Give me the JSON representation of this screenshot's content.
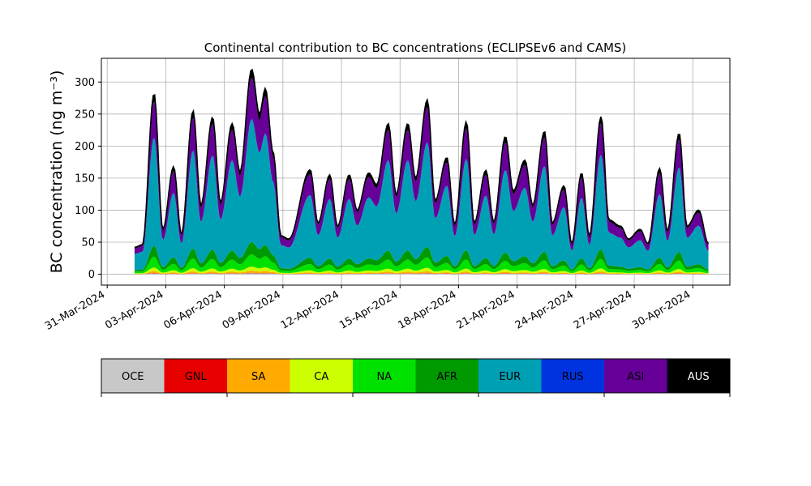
{
  "chart_data": {
    "type": "area",
    "stacked": true,
    "title": "Continental contribution to BC concentrations (ECLIPSEv6 and CAMS)",
    "ylabel": "BC concentration (ng m⁻³)",
    "xlabel": "",
    "ylim": [
      -17,
      337
    ],
    "yticks": [
      0,
      50,
      100,
      150,
      200,
      250,
      300
    ],
    "xlim_days": [
      -0.3,
      31.9
    ],
    "xticks": [
      {
        "day": 0,
        "label": "31-Mar-2024"
      },
      {
        "day": 3,
        "label": "03-Apr-2024"
      },
      {
        "day": 6,
        "label": "06-Apr-2024"
      },
      {
        "day": 9,
        "label": "09-Apr-2024"
      },
      {
        "day": 12,
        "label": "12-Apr-2024"
      },
      {
        "day": 15,
        "label": "15-Apr-2024"
      },
      {
        "day": 18,
        "label": "18-Apr-2024"
      },
      {
        "day": 21,
        "label": "21-Apr-2024"
      },
      {
        "day": 24,
        "label": "24-Apr-2024"
      },
      {
        "day": 27,
        "label": "27-Apr-2024"
      },
      {
        "day": 30,
        "label": "30-Apr-2024"
      }
    ],
    "grid": true,
    "legend_position": "below",
    "total_peaks": [
      [
        1.4,
        42
      ],
      [
        1.8,
        46
      ],
      [
        2.4,
        282
      ],
      [
        2.85,
        70
      ],
      [
        3.4,
        168
      ],
      [
        3.8,
        63
      ],
      [
        4.4,
        255
      ],
      [
        4.8,
        108
      ],
      [
        5.4,
        245
      ],
      [
        5.8,
        112
      ],
      [
        6.4,
        235
      ],
      [
        6.8,
        160
      ],
      [
        7.4,
        320
      ],
      [
        7.8,
        250
      ],
      [
        8.1,
        290
      ],
      [
        8.5,
        190
      ],
      [
        8.9,
        60
      ],
      [
        9.3,
        55
      ],
      [
        10.4,
        163
      ],
      [
        10.8,
        80
      ],
      [
        11.4,
        155
      ],
      [
        11.8,
        75
      ],
      [
        12.4,
        155
      ],
      [
        12.8,
        100
      ],
      [
        13.4,
        158
      ],
      [
        13.8,
        140
      ],
      [
        14.4,
        235
      ],
      [
        14.8,
        125
      ],
      [
        15.4,
        235
      ],
      [
        15.8,
        150
      ],
      [
        16.4,
        272
      ],
      [
        16.8,
        115
      ],
      [
        17.4,
        182
      ],
      [
        17.8,
        78
      ],
      [
        18.4,
        238
      ],
      [
        18.8,
        80
      ],
      [
        19.4,
        162
      ],
      [
        19.8,
        82
      ],
      [
        20.4,
        215
      ],
      [
        20.8,
        130
      ],
      [
        21.4,
        178
      ],
      [
        21.8,
        108
      ],
      [
        22.4,
        223
      ],
      [
        22.8,
        80
      ],
      [
        23.4,
        138
      ],
      [
        23.8,
        48
      ],
      [
        24.3,
        158
      ],
      [
        24.7,
        60
      ],
      [
        25.3,
        246
      ],
      [
        25.7,
        85
      ],
      [
        26.3,
        75
      ],
      [
        26.7,
        55
      ],
      [
        27.3,
        70
      ],
      [
        27.7,
        48
      ],
      [
        28.3,
        165
      ],
      [
        28.7,
        68
      ],
      [
        29.3,
        220
      ],
      [
        29.7,
        75
      ],
      [
        30.3,
        100
      ],
      [
        30.8,
        48
      ]
    ],
    "series": [
      {
        "name": "OCE",
        "color": "#c8c8c8",
        "fraction": 0.005
      },
      {
        "name": "GNL",
        "color": "#e60000",
        "fraction": 0.002
      },
      {
        "name": "SA",
        "color": "#ffaa00",
        "fraction": 0.01
      },
      {
        "name": "CA",
        "color": "#ccff00",
        "fraction": 0.02
      },
      {
        "name": "NA",
        "color": "#00e100",
        "fraction": 0.06
      },
      {
        "name": "AFR",
        "color": "#009900",
        "fraction": 0.06
      },
      {
        "name": "EUR",
        "color": "#00a0b4",
        "fraction": 0.6
      },
      {
        "name": "RUS",
        "color": "#0033e0",
        "fraction": 0.005
      },
      {
        "name": "ASI",
        "color": "#660099",
        "fraction": 0.2
      },
      {
        "name": "AUS",
        "color": "#000000",
        "fraction": 0.04
      }
    ]
  }
}
